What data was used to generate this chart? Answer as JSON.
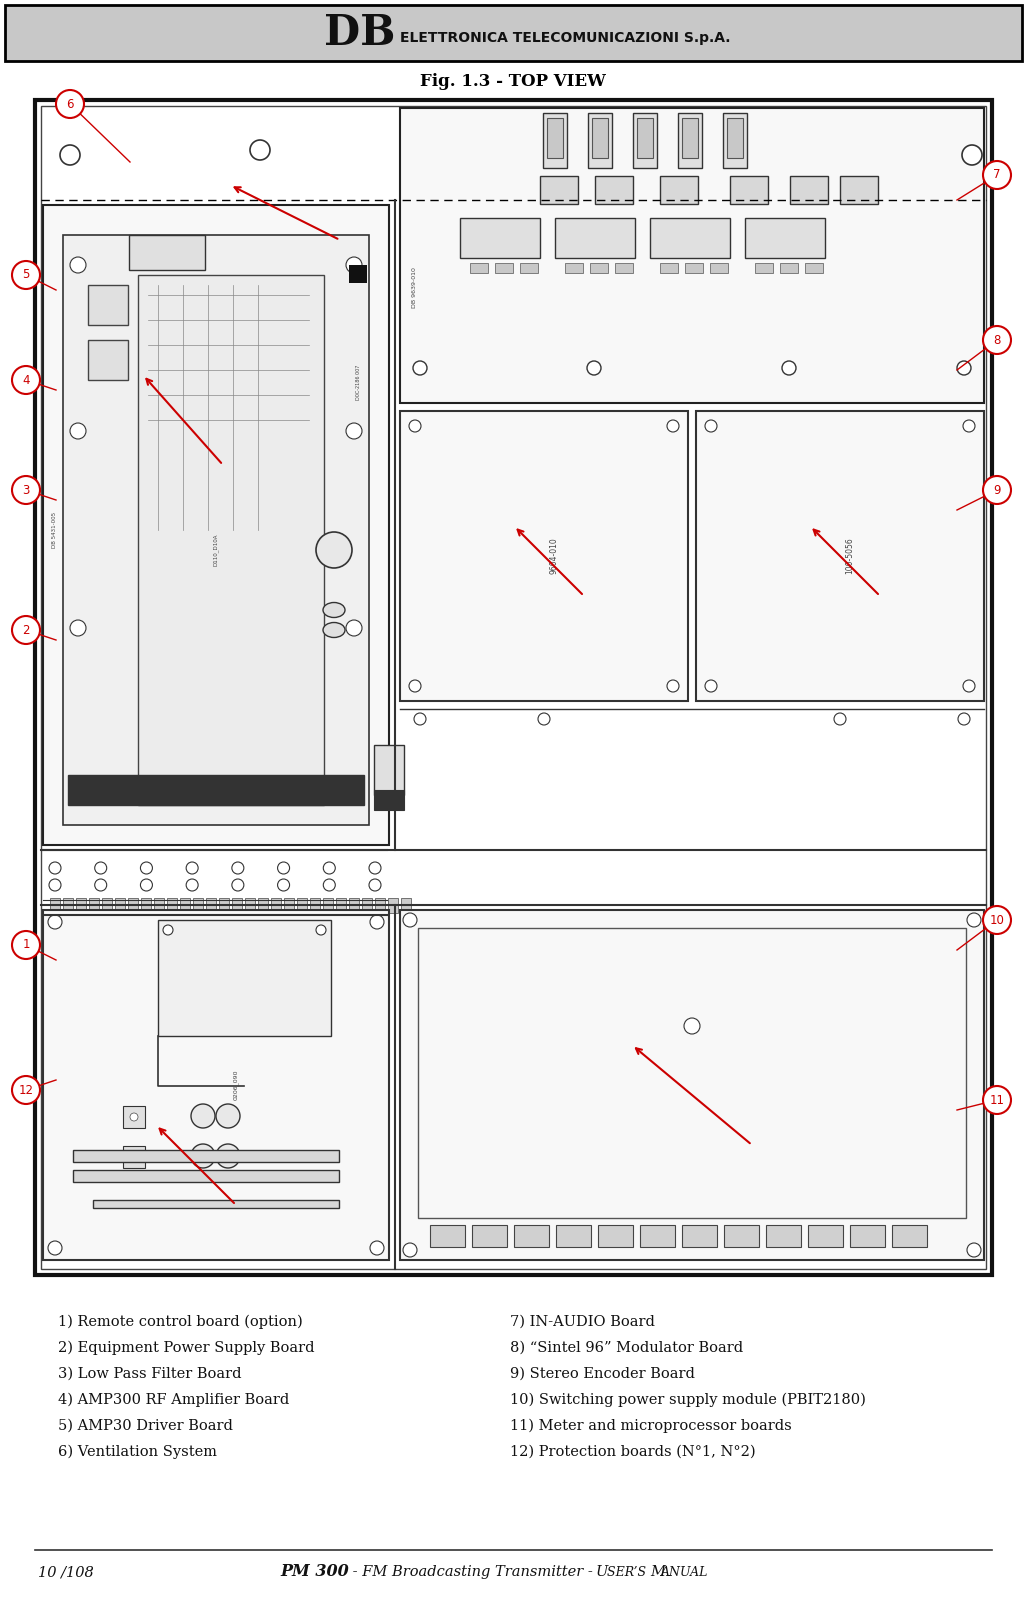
{
  "header_bg": "#c8c8c8",
  "header_border": "#000000",
  "header_db_text": "DB",
  "header_sub_text": "ELETTRONICA TELECOMUNICAZIONI S.p.A.",
  "title": "Fig. 1.3 - TOP VIEW",
  "bg_color": "#ffffff",
  "callout_color": "#cc0000",
  "legend_left": [
    "1) Remote control board (option)",
    "2) Equipment Power Supply Board",
    "3) Low Pass Filter Board",
    "4) AMP300 RF Amplifier Board",
    "5) AMP30 Driver Board",
    "6) Ventilation System"
  ],
  "legend_right": [
    "7) IN-AUDIO Board",
    "8) “Sintel 96” Modulator Board",
    "9) Stereo Encoder Board",
    "10) Switching power supply module (PBIT2180)",
    "11) Meter and microprocessor boards",
    "12) Protection boards (N°1, N°2)"
  ],
  "footer_page": "10 /108",
  "footer_bold": "PM 300",
  "footer_normal": " - FM Broadcasting Transmitter - ",
  "footer_sc": "USER’S MANUAL"
}
